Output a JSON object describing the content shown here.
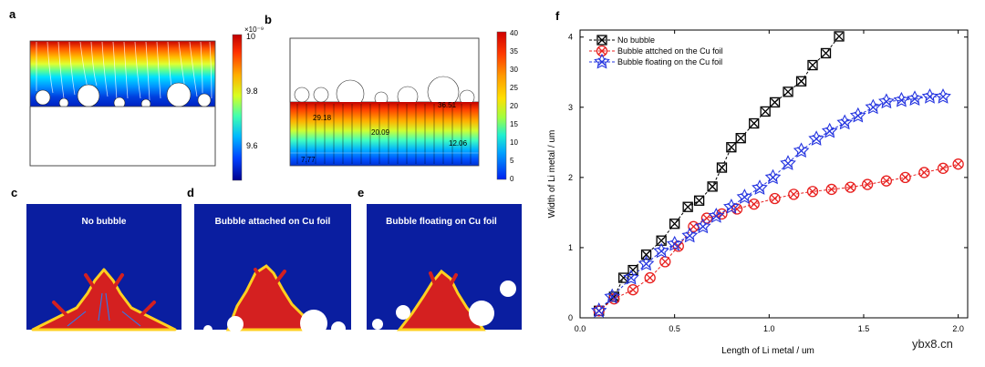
{
  "panels": {
    "a": {
      "letter": "a",
      "colorbar": {
        "exponent": "×10⁻⁹",
        "ticks": [
          "10",
          "9.8",
          "9.6"
        ]
      }
    },
    "b": {
      "letter": "b",
      "colorbar": {
        "ticks": [
          "40",
          "35",
          "30",
          "25",
          "20",
          "15",
          "10",
          "5",
          "0"
        ]
      },
      "annotations": [
        "29.18",
        "36.51",
        "20.09",
        "12.06",
        "7.77"
      ]
    },
    "c": {
      "letter": "c",
      "title": "No bubble"
    },
    "d": {
      "letter": "d",
      "title": "Bubble attached on Cu foil"
    },
    "e": {
      "letter": "e",
      "title": "Bubble floating on Cu foil"
    },
    "f": {
      "letter": "f"
    }
  },
  "watermark": "ybx8.cn",
  "chart_data": {
    "type": "line",
    "xlabel": "Length of Li metal / um",
    "ylabel": "Width of Li metal / um",
    "xlim": [
      0,
      2.05
    ],
    "ylim": [
      0,
      4.1
    ],
    "xticks": [
      "0.0",
      "0.5",
      "1.0",
      "1.5",
      "2.0"
    ],
    "yticks": [
      "0",
      "1",
      "2",
      "3",
      "4"
    ],
    "legend_position": "top-left",
    "series": [
      {
        "name": "No bubble",
        "color": "#000000",
        "marker": "boxed-x",
        "x": [
          0.1,
          0.18,
          0.23,
          0.28,
          0.33,
          0.38,
          0.43,
          0.48,
          0.53,
          0.58,
          0.63,
          0.68,
          0.73,
          0.78,
          0.83,
          0.88,
          0.93,
          0.98,
          1.03,
          1.08,
          1.13,
          1.18,
          1.23,
          1.28,
          1.33,
          1.37
        ],
        "y": [
          0.1,
          0.28,
          0.55,
          0.68,
          0.88,
          1.05,
          1.22,
          1.38,
          1.55,
          1.75,
          1.82,
          1.92,
          2.12,
          2.28,
          2.45,
          2.58,
          2.75,
          2.92,
          3.08,
          3.22,
          3.38,
          3.52,
          3.62,
          3.82,
          4.01,
          4.05
        ],
        "x_drawn": [
          0.1,
          0.18,
          0.23,
          0.28,
          0.35,
          0.43,
          0.5,
          0.57,
          0.63,
          0.7,
          0.75,
          0.8,
          0.85,
          0.92,
          0.98,
          1.03,
          1.1,
          1.17,
          1.23,
          1.3,
          1.37
        ],
        "y_drawn": [
          0.1,
          0.3,
          0.57,
          0.68,
          0.9,
          1.1,
          1.34,
          1.58,
          1.67,
          1.87,
          2.14,
          2.43,
          2.56,
          2.77,
          2.94,
          3.07,
          3.22,
          3.37,
          3.6,
          3.77,
          4.01
        ]
      },
      {
        "name": "Bubble attched on the Cu foil",
        "color": "#e8201f",
        "marker": "circled-x",
        "x": [
          0.1,
          0.18,
          0.28,
          0.37,
          0.45,
          0.52,
          0.6,
          0.67,
          0.75,
          0.83,
          0.92,
          1.0,
          1.1,
          1.2,
          1.3,
          1.38,
          1.45,
          1.52,
          1.58,
          1.65,
          1.72,
          1.8,
          1.87,
          1.94,
          2.0
        ],
        "y": [
          0.1,
          0.27,
          0.4,
          0.57,
          0.8,
          1.02,
          1.3,
          1.45,
          1.5,
          1.55,
          1.62,
          1.72,
          1.75,
          1.78,
          1.83,
          1.86,
          1.88,
          1.95,
          2.0,
          2.04,
          2.08,
          2.12,
          2.15,
          2.18,
          2.2
        ],
        "x_drawn": [
          0.1,
          0.18,
          0.28,
          0.37,
          0.45,
          0.52,
          0.6,
          0.67,
          0.75,
          0.83,
          0.92,
          1.03,
          1.13,
          1.23,
          1.33,
          1.43,
          1.52,
          1.62,
          1.72,
          1.82,
          1.92,
          2.0
        ],
        "y_drawn": [
          0.1,
          0.27,
          0.4,
          0.57,
          0.8,
          1.02,
          1.3,
          1.42,
          1.48,
          1.55,
          1.62,
          1.7,
          1.76,
          1.8,
          1.83,
          1.86,
          1.9,
          1.95,
          2.0,
          2.07,
          2.13,
          2.19
        ]
      },
      {
        "name": "Bubble floating on the Cu foil",
        "color": "#2535e0",
        "marker": "star-x",
        "x": [
          0.1,
          0.17,
          0.25,
          0.32,
          0.4,
          0.47,
          0.55,
          0.62,
          0.7,
          0.77,
          0.85,
          0.92,
          1.0,
          1.07,
          1.15,
          1.22,
          1.3,
          1.37,
          1.45,
          1.52,
          1.6,
          1.67,
          1.75,
          1.82,
          1.9
        ],
        "y": [
          0.1,
          0.3,
          0.57,
          0.77,
          0.92,
          1.05,
          1.17,
          1.3,
          1.45,
          1.58,
          1.72,
          1.85,
          2.0,
          2.2,
          2.38,
          2.55,
          2.68,
          2.78,
          2.88,
          3.0,
          3.08,
          3.1,
          3.12,
          3.15,
          3.15
        ],
        "x_drawn": [
          0.1,
          0.17,
          0.27,
          0.35,
          0.43,
          0.5,
          0.58,
          0.65,
          0.72,
          0.8,
          0.87,
          0.95,
          1.02,
          1.1,
          1.17,
          1.25,
          1.32,
          1.4,
          1.47,
          1.55,
          1.62,
          1.7,
          1.77,
          1.85,
          1.92
        ],
        "y_drawn": [
          0.1,
          0.3,
          0.57,
          0.77,
          0.95,
          1.05,
          1.17,
          1.3,
          1.45,
          1.58,
          1.72,
          1.85,
          2.0,
          2.2,
          2.38,
          2.55,
          2.66,
          2.78,
          2.88,
          3.0,
          3.08,
          3.1,
          3.12,
          3.15,
          3.15
        ]
      }
    ]
  }
}
